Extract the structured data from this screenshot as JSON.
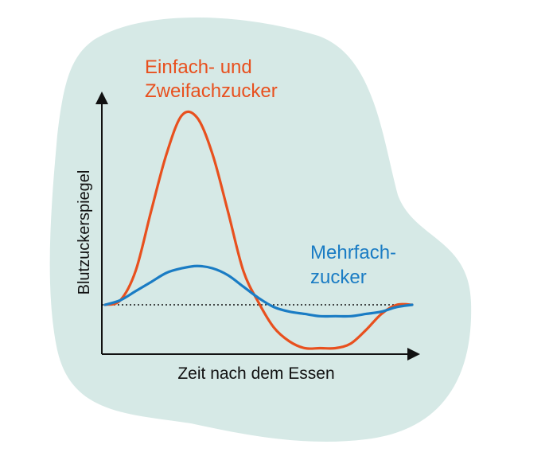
{
  "colors": {
    "background_blob": "#d6e9e6",
    "simple_sugar": "#e8501e",
    "complex_sugar": "#1a7cc4",
    "axis": "#111111"
  },
  "chart_data": {
    "type": "line",
    "xlabel": "Zeit nach dem Essen",
    "ylabel": "Blutzuckerspiegel",
    "x_ticks_shown": false,
    "y_ticks_shown": false,
    "grid": false,
    "xlim": [
      0,
      10
    ],
    "ylim": [
      -2,
      10
    ],
    "baseline": {
      "y": 0,
      "style": "dotted"
    },
    "series": [
      {
        "name_lines": [
          "Einfach- und",
          "Zweifachzucker"
        ],
        "color": "#e8501e",
        "x": [
          0,
          0.5,
          1,
          1.5,
          2,
          2.5,
          3,
          3.5,
          4,
          4.5,
          5,
          5.5,
          6,
          6.5,
          7,
          7.5,
          8,
          8.5,
          9,
          9.5,
          10
        ],
        "y": [
          0,
          0.2,
          1.5,
          4.1,
          6.6,
          8.3,
          8.2,
          6.6,
          4.1,
          1.5,
          0.1,
          -1.0,
          -1.6,
          -1.9,
          -1.9,
          -1.9,
          -1.7,
          -1.1,
          -0.4,
          0.0,
          0.0
        ]
      },
      {
        "name_lines": [
          "Mehrfach-",
          "zucker"
        ],
        "color": "#1a7cc4",
        "x": [
          0,
          0.5,
          1,
          1.5,
          2,
          2.5,
          3,
          3.5,
          4,
          4.5,
          5,
          5.5,
          6,
          6.5,
          7,
          7.5,
          8,
          8.5,
          9,
          9.5,
          10
        ],
        "y": [
          0,
          0.2,
          0.6,
          1.0,
          1.4,
          1.6,
          1.7,
          1.6,
          1.3,
          0.8,
          0.3,
          -0.1,
          -0.3,
          -0.4,
          -0.5,
          -0.5,
          -0.5,
          -0.4,
          -0.3,
          -0.1,
          0.0
        ]
      }
    ]
  }
}
